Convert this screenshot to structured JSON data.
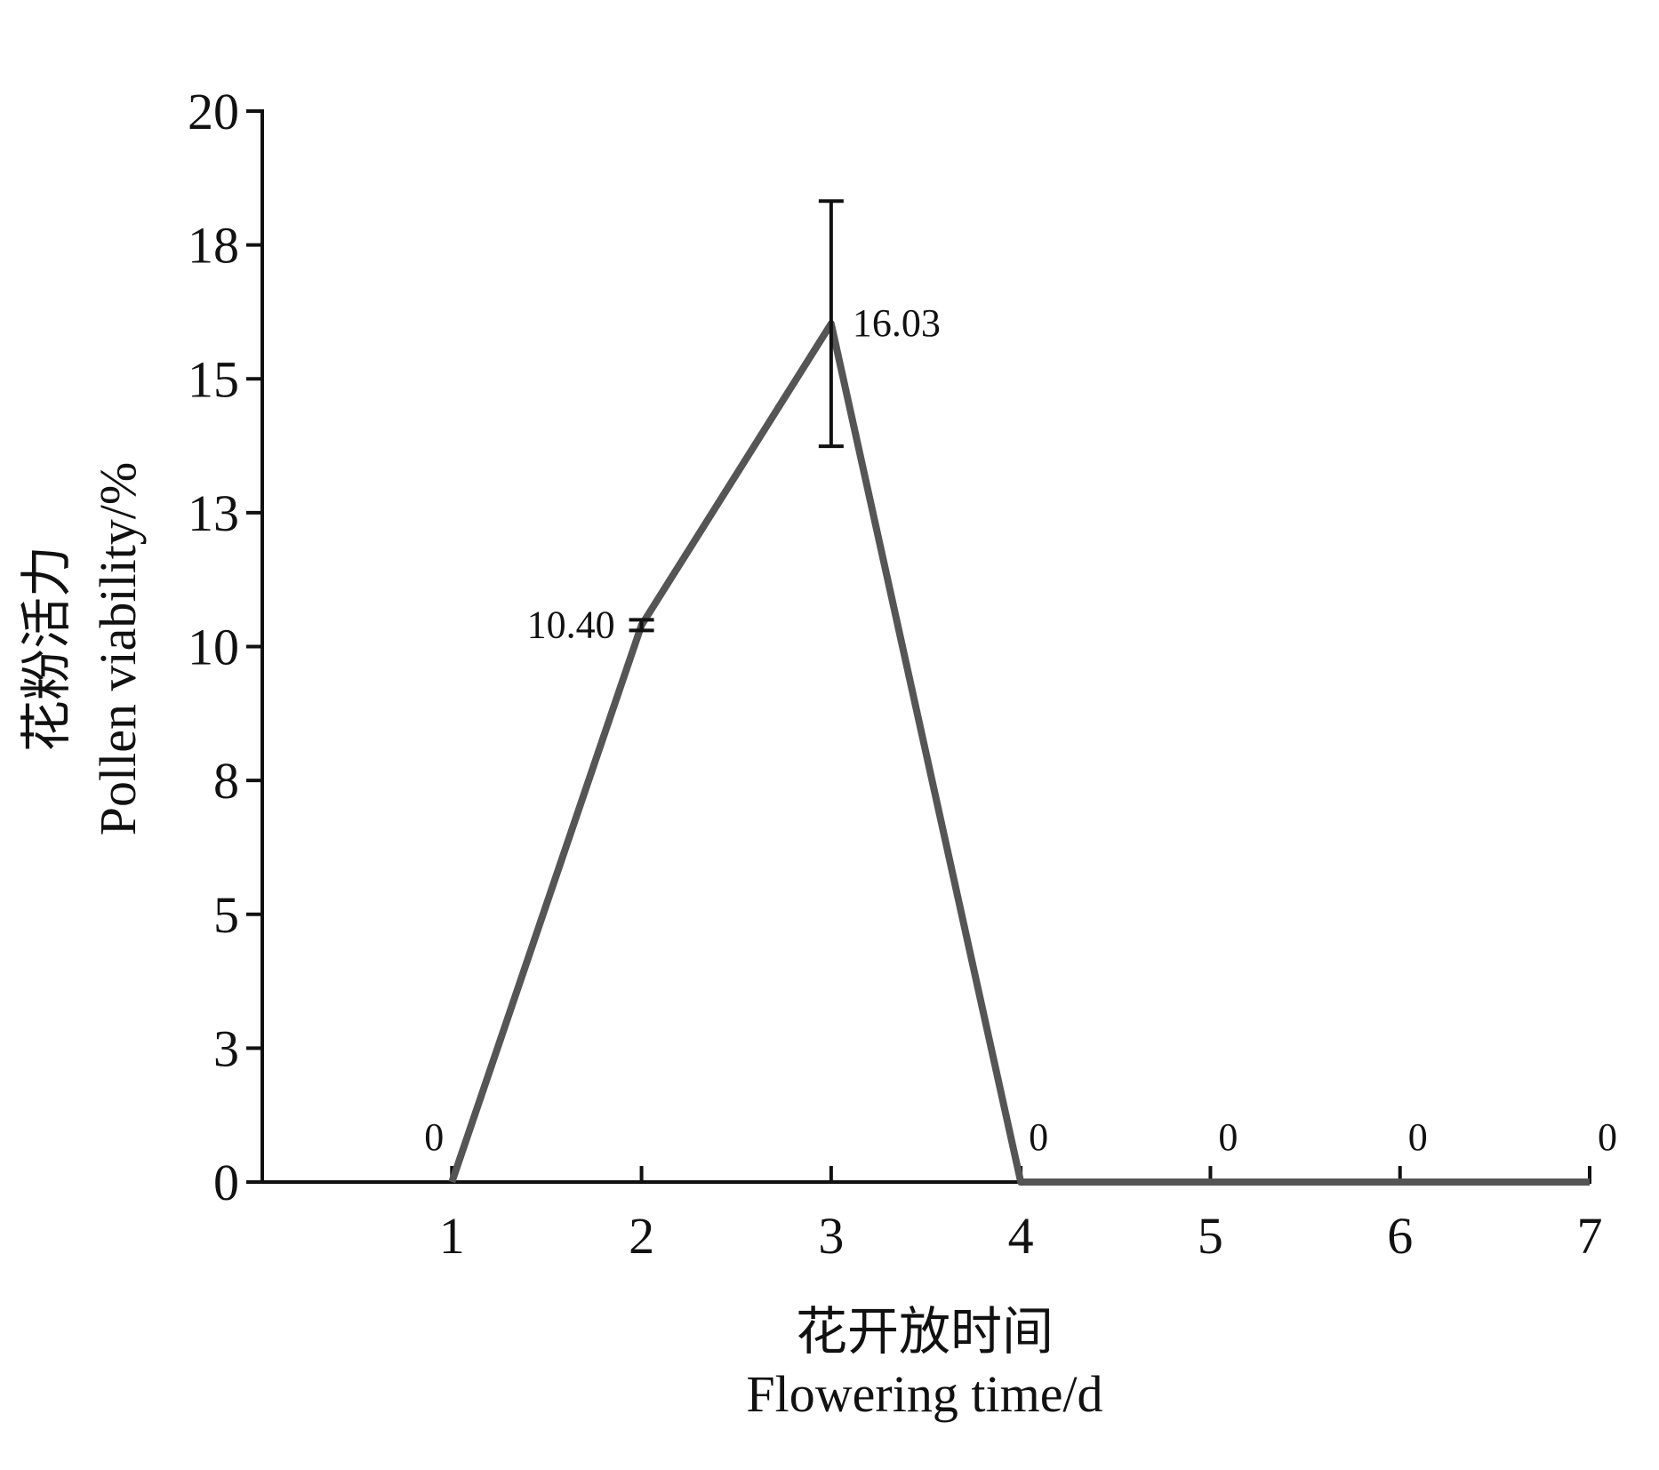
{
  "chart_data": {
    "type": "line",
    "y_label": [
      "花粉活力",
      "Pollen viability/%"
    ],
    "x_label": [
      "花开放时间",
      "Flowering time/d"
    ],
    "x": [
      1,
      2,
      3,
      4,
      5,
      6,
      7
    ],
    "series": [
      {
        "color": "#555555",
        "values": [
          0,
          10.4,
          16.03,
          0,
          0,
          0,
          0
        ],
        "value_labels": [
          "0",
          "10.40",
          "16.03",
          "0",
          "0",
          "0",
          "0"
        ],
        "errors": [
          null,
          0.1,
          2.29,
          null,
          null,
          null,
          null
        ]
      }
    ],
    "xlim": [
      0,
      7
    ],
    "xticks": [
      1,
      2,
      3,
      4,
      5,
      6,
      7
    ],
    "ylim": [
      0,
      20
    ],
    "yticks": [
      0,
      {
        "value": 2.5,
        "label": "3"
      },
      5,
      {
        "value": 7.5,
        "label": "8"
      },
      10,
      {
        "value": 12.5,
        "label": "13"
      },
      15,
      {
        "value": 17.5,
        "label": "18"
      },
      20
    ]
  }
}
